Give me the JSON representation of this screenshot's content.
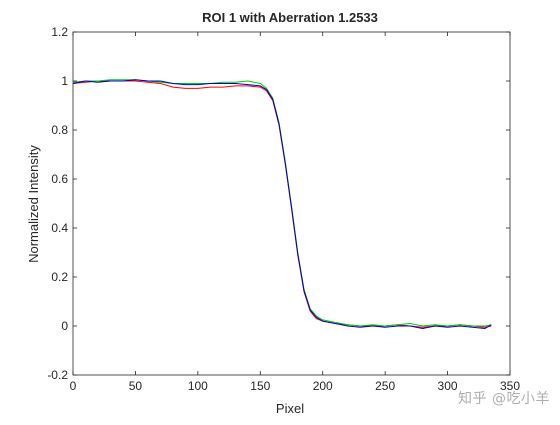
{
  "chart_data": {
    "type": "line",
    "title": "ROI 1 with Aberration 1.2533",
    "xlabel": "Pixel",
    "ylabel": "Normalized Intensity",
    "xlim": [
      0,
      350
    ],
    "ylim": [
      -0.2,
      1.2
    ],
    "xticks": [
      0,
      50,
      100,
      150,
      200,
      250,
      300,
      350
    ],
    "yticks": [
      -0.2,
      0,
      0.2,
      0.4,
      0.6,
      0.8,
      1,
      1.2
    ],
    "grid": false,
    "legend": "none",
    "series": [
      {
        "color": "#ff0000",
        "x": [
          0,
          10,
          20,
          30,
          40,
          50,
          60,
          70,
          80,
          90,
          100,
          110,
          120,
          130,
          140,
          150,
          155,
          160,
          165,
          170,
          175,
          180,
          185,
          190,
          195,
          200,
          210,
          220,
          230,
          240,
          250,
          260,
          270,
          280,
          290,
          300,
          310,
          320,
          330,
          335
        ],
        "y": [
          0.99,
          0.995,
          1.0,
          1.0,
          1.0,
          1.0,
          0.995,
          0.99,
          0.975,
          0.97,
          0.97,
          0.975,
          0.975,
          0.98,
          0.98,
          0.975,
          0.96,
          0.92,
          0.82,
          0.66,
          0.48,
          0.29,
          0.14,
          0.06,
          0.03,
          0.02,
          0.01,
          0.005,
          0.0,
          0.0,
          0.0,
          0.005,
          0.0,
          -0.005,
          0.0,
          0.0,
          0.005,
          0.0,
          -0.005,
          0.0
        ]
      },
      {
        "color": "#00cc00",
        "x": [
          0,
          10,
          20,
          30,
          40,
          50,
          60,
          70,
          80,
          90,
          100,
          110,
          120,
          130,
          140,
          150,
          155,
          160,
          165,
          170,
          175,
          180,
          185,
          190,
          195,
          200,
          210,
          220,
          230,
          240,
          250,
          260,
          270,
          280,
          290,
          300,
          310,
          320,
          330,
          335
        ],
        "y": [
          0.995,
          1.0,
          1.0,
          1.005,
          1.005,
          1.005,
          1.0,
          0.995,
          0.99,
          0.99,
          0.99,
          0.99,
          0.995,
          0.995,
          1.0,
          0.99,
          0.97,
          0.93,
          0.83,
          0.67,
          0.49,
          0.3,
          0.15,
          0.07,
          0.04,
          0.025,
          0.015,
          0.005,
          0.0,
          0.005,
          0.0,
          0.005,
          0.01,
          0.0,
          0.005,
          0.0,
          0.005,
          0.0,
          0.0,
          0.005
        ]
      },
      {
        "color": "#0000cc",
        "x": [
          0,
          10,
          20,
          30,
          40,
          50,
          60,
          70,
          80,
          90,
          100,
          110,
          120,
          130,
          140,
          150,
          155,
          160,
          165,
          170,
          175,
          180,
          185,
          190,
          195,
          200,
          210,
          220,
          230,
          240,
          250,
          260,
          270,
          280,
          290,
          300,
          310,
          320,
          330,
          335
        ],
        "y": [
          0.99,
          1.0,
          0.995,
          1.0,
          1.0,
          1.005,
          1.0,
          1.0,
          0.99,
          0.985,
          0.985,
          0.99,
          0.99,
          0.99,
          0.985,
          0.98,
          0.965,
          0.925,
          0.825,
          0.665,
          0.485,
          0.295,
          0.145,
          0.065,
          0.035,
          0.02,
          0.01,
          0.0,
          -0.005,
          0.0,
          -0.005,
          0.0,
          0.0,
          -0.01,
          0.0,
          -0.005,
          0.0,
          -0.005,
          -0.01,
          0.005
        ]
      }
    ]
  },
  "watermark": "知乎 @吃小羊"
}
